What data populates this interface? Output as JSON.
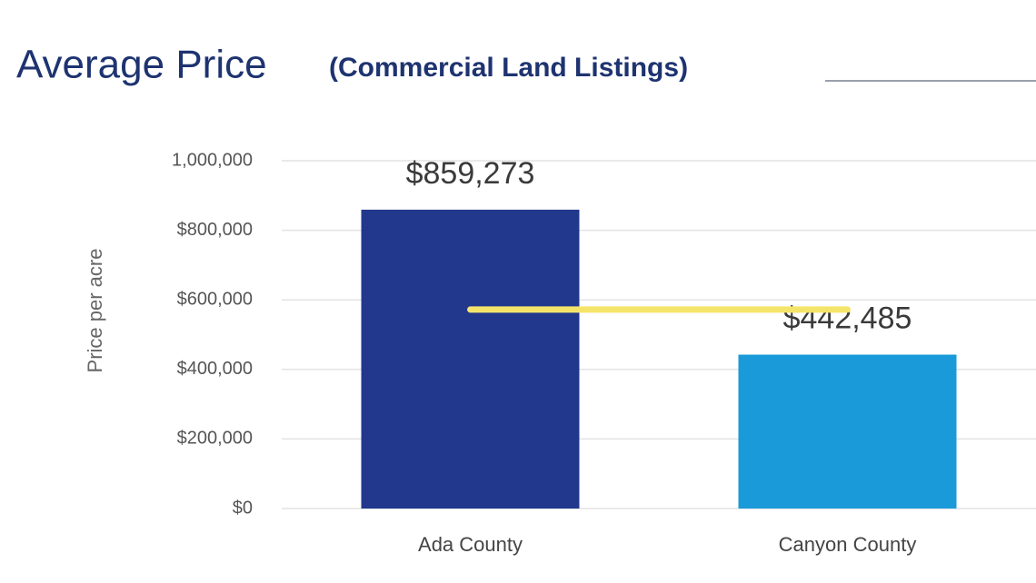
{
  "chart_data": {
    "type": "bar",
    "title": "Average Price",
    "subtitle": "(Commercial Land Listings)",
    "y_label": "Price per acre",
    "categories": [
      "Ada County",
      "Canyon County"
    ],
    "values": [
      859273,
      442485
    ],
    "value_labels": [
      "$859,273",
      "$442,485"
    ],
    "colors": [
      "#22388c",
      "#1a9ad8"
    ],
    "line": {
      "values": [
        572000,
        572000
      ],
      "color": "#f5e46a"
    },
    "ylim": [
      0,
      1000000
    ],
    "yticks": [
      {
        "value": 0,
        "label": "$0"
      },
      {
        "value": 200000,
        "label": "$200,000"
      },
      {
        "value": 400000,
        "label": "$400,000"
      },
      {
        "value": 600000,
        "label": "$600,000"
      },
      {
        "value": 800000,
        "label": "$800,000"
      },
      {
        "value": 1000000,
        "label": "1,000,000"
      }
    ],
    "grid": true
  }
}
